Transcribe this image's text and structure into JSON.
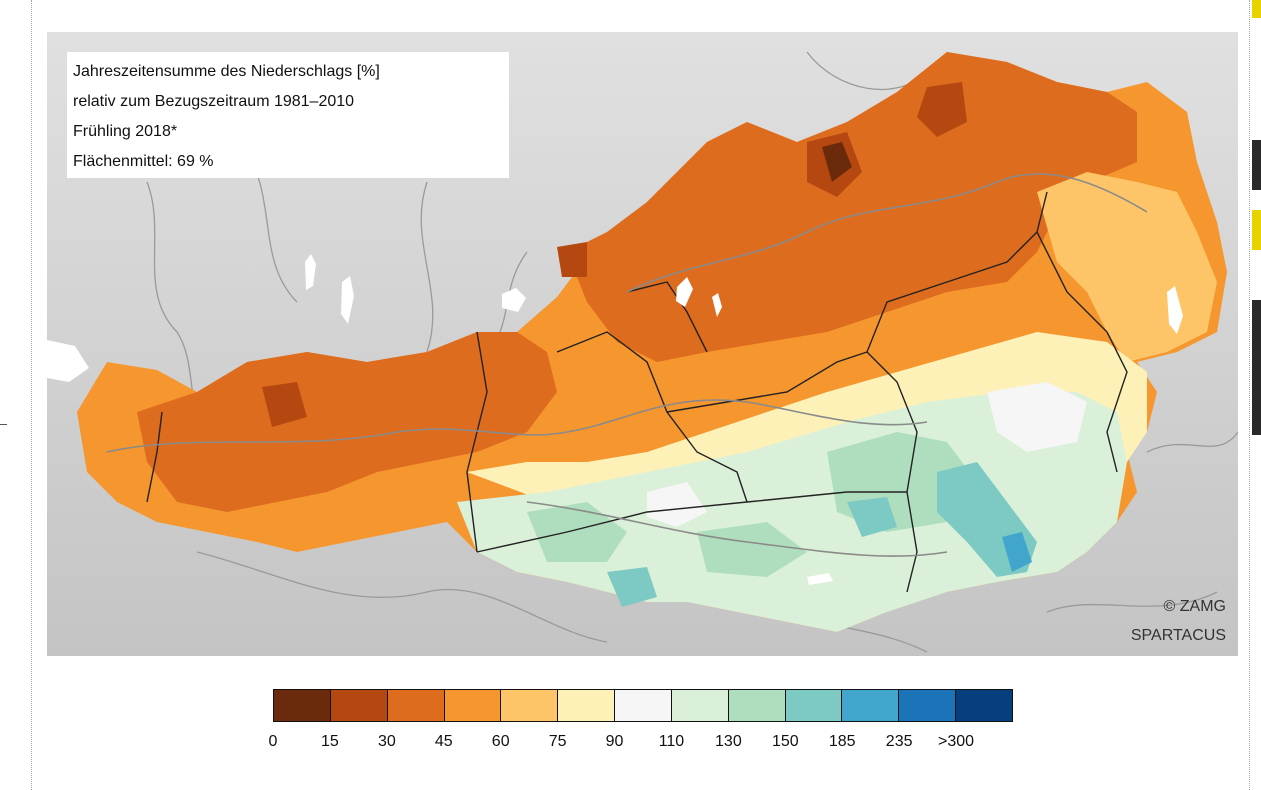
{
  "map_info": {
    "title": "Jahreszeitensumme des Niederschlags [%]",
    "reference": "relativ zum Bezugszeitraum 1981–2010",
    "season": "Frühling 2018*",
    "area_mean": "Flächenmittel: 69 %"
  },
  "credits": {
    "copyright": "© ZAMG",
    "source": "SPARTACUS"
  },
  "legend": {
    "labels": [
      "0",
      "15",
      "30",
      "45",
      "60",
      "75",
      "90",
      "110",
      "130",
      "150",
      "185",
      "235",
      ">300"
    ],
    "colors": [
      "#6b2a0c",
      "#b54710",
      "#de6c1e",
      "#f6962e",
      "#fdc567",
      "#fdf1b8",
      "#f6f6f6",
      "#daf0d8",
      "#afdebe",
      "#7ccac3",
      "#42a6cc",
      "#1b74b7",
      "#073f7e"
    ]
  },
  "map_colors": {
    "background_terrain": "#d2d2d2",
    "lakes": "#ffffff",
    "borders": "#222222",
    "rivers": "#888888"
  }
}
